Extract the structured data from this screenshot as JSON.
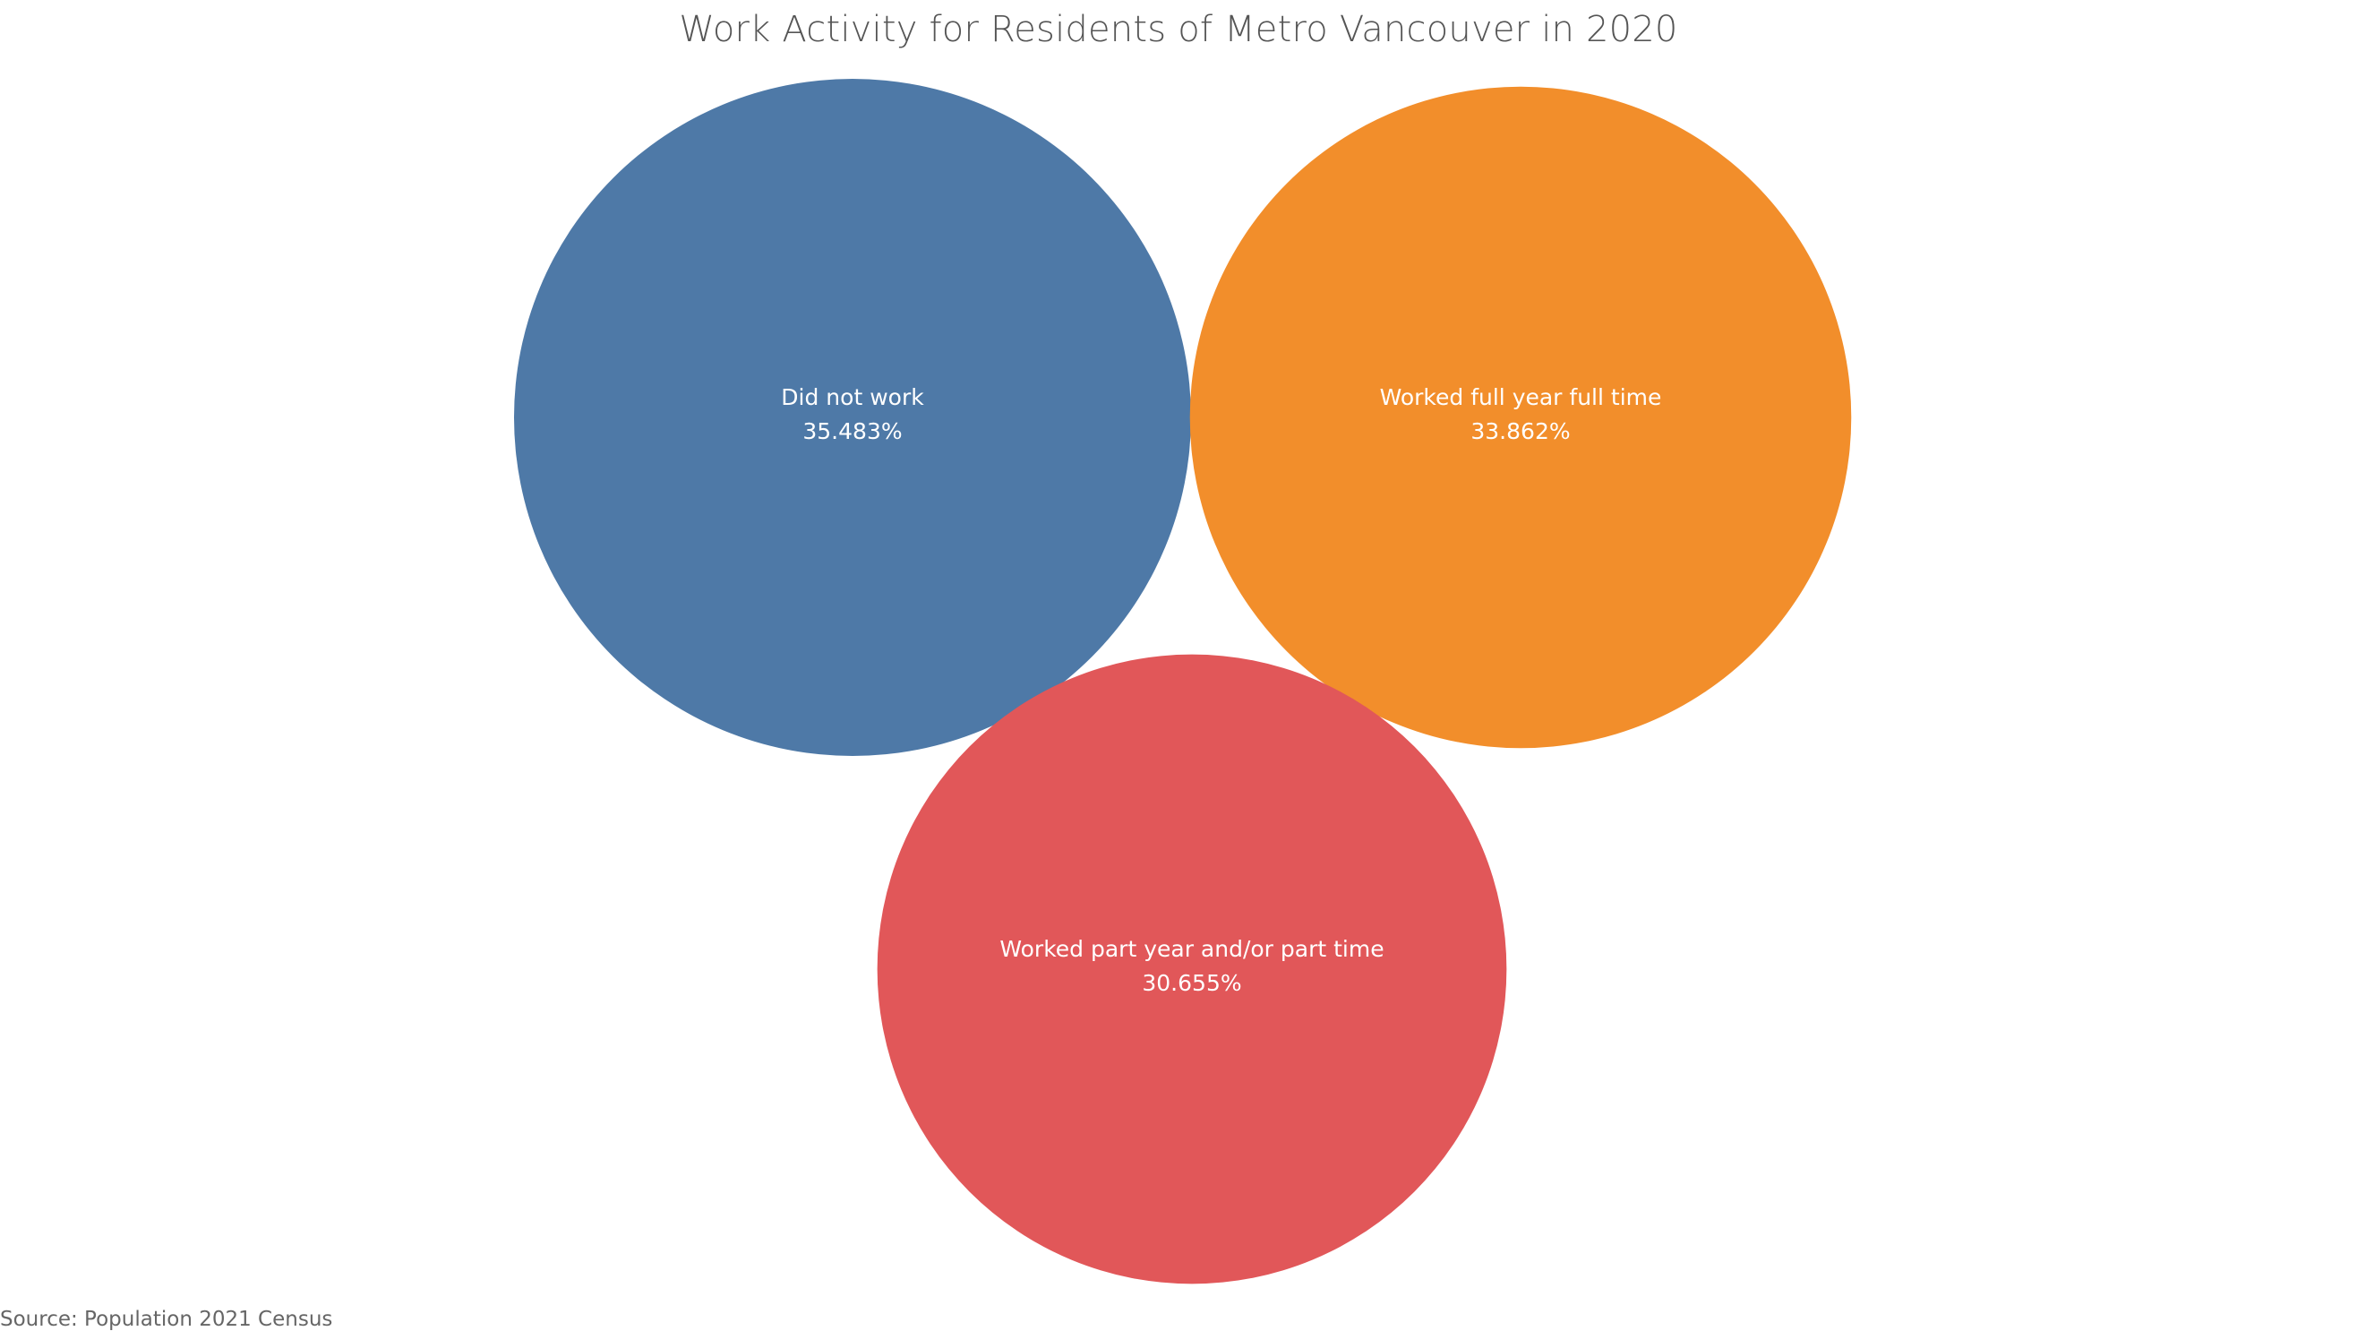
{
  "chart_data": {
    "type": "bubble",
    "title": "Work Activity for Residents of Metro Vancouver in 2020",
    "source": "Source: Population 2021 Census",
    "series": [
      {
        "name": "Did not work",
        "value": 35.483,
        "value_label": "35.483%",
        "color": "#4E79A7"
      },
      {
        "name": "Worked full year full time",
        "value": 33.862,
        "value_label": "33.862%",
        "color": "#F28E2B"
      },
      {
        "name": "Worked part year and/or part time",
        "value": 30.655,
        "value_label": "30.655%",
        "color": "#E15759"
      }
    ],
    "label_color": "#FFFFFF"
  }
}
